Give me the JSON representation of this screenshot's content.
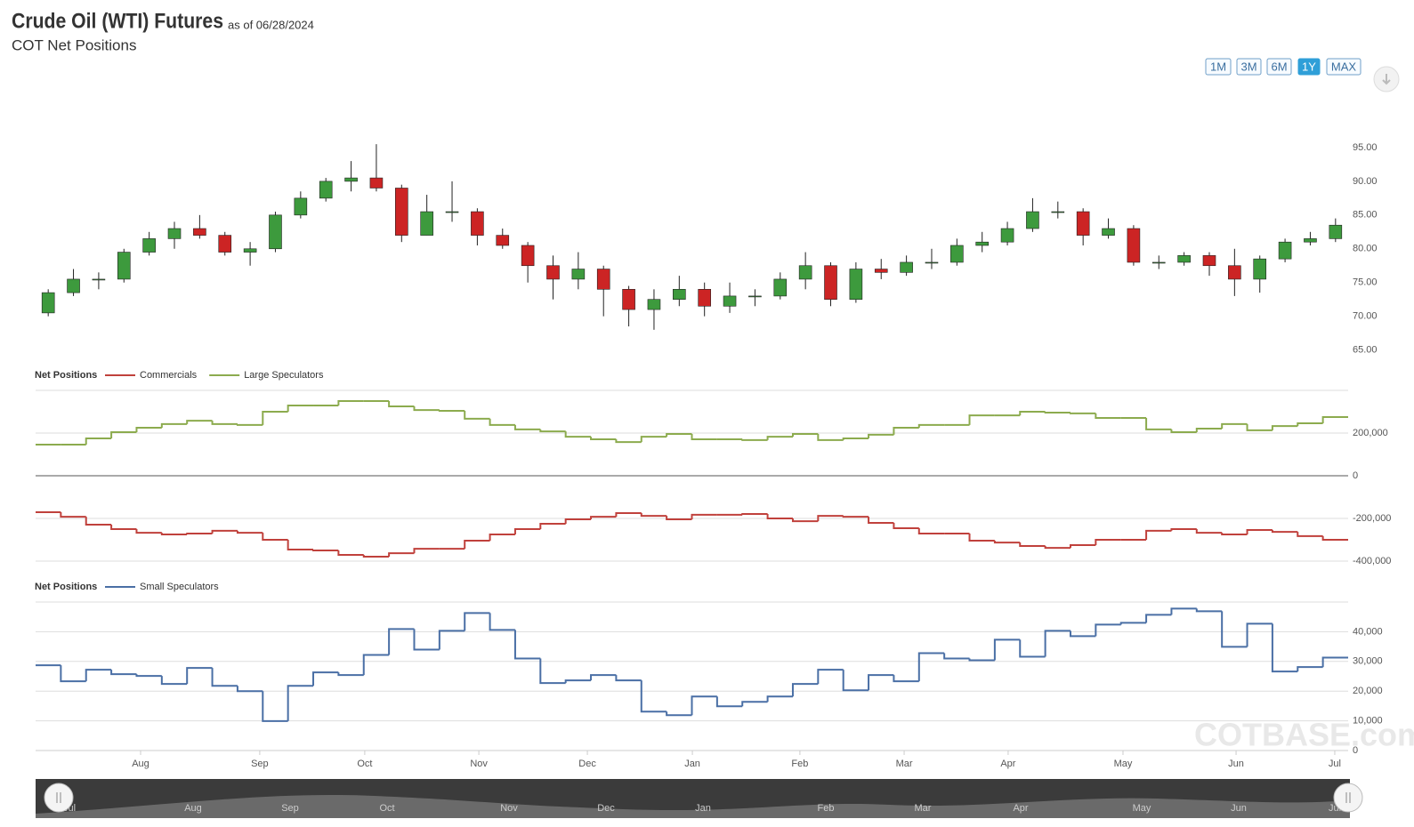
{
  "header": {
    "title": "Crude Oil (WTI) Futures",
    "as_of": "as of 06/28/2024",
    "subtitle": "COT Net Positions"
  },
  "range_buttons": {
    "labels": [
      "1M",
      "3M",
      "6M",
      "1Y",
      "MAX"
    ],
    "selected": 3
  },
  "watermark": "COTBASE.com",
  "navigator": {
    "labels": [
      "Jul",
      "Aug",
      "Sep",
      "Oct",
      "Nov",
      "Dec",
      "Jan",
      "Feb",
      "Mar",
      "Apr",
      "May",
      "Jun",
      "Jul"
    ]
  },
  "chart_data": [
    {
      "type": "candlestick",
      "up_color": "#3d9a3d",
      "down_color": "#cc2424",
      "x": [
        0,
        1,
        2,
        3,
        4,
        5,
        6,
        7,
        8,
        9,
        10,
        11,
        12,
        13,
        14,
        15,
        16,
        17,
        18,
        19,
        20,
        21,
        22,
        23,
        24,
        25,
        26,
        27,
        28,
        29,
        30,
        31,
        32,
        33,
        34,
        35,
        36,
        37,
        38,
        39,
        40,
        41,
        42,
        43,
        44,
        45,
        46,
        47,
        48,
        49,
        50,
        51
      ],
      "open": [
        70.5,
        73.5,
        75.5,
        75.5,
        79.5,
        81.5,
        83,
        82,
        79.5,
        80,
        85,
        87.5,
        90,
        90.5,
        89,
        82,
        85.5,
        85.5,
        82,
        80.5,
        77.5,
        75.5,
        77,
        74,
        71,
        72.5,
        74,
        71.5,
        73,
        73,
        75.5,
        77.5,
        72.5,
        77,
        76.5,
        78,
        78,
        80.5,
        81,
        83,
        85.5,
        85.5,
        82,
        83,
        78,
        78,
        79,
        77.5,
        75.5,
        78.5,
        81,
        81.5
      ],
      "high": [
        74,
        77,
        76.5,
        80,
        82.5,
        84,
        85,
        82.5,
        81,
        85.5,
        88.5,
        90.5,
        93,
        95.5,
        89.5,
        88,
        90,
        86,
        83,
        81,
        79,
        79.5,
        77.5,
        74.5,
        74,
        76,
        75,
        75,
        74,
        76.5,
        79.5,
        78,
        78,
        78.5,
        79,
        80,
        81.5,
        82.5,
        84,
        87.5,
        87,
        86,
        84.5,
        83.5,
        79,
        79.5,
        79.5,
        80,
        79,
        81.5,
        82.5,
        84.5
      ],
      "low": [
        70,
        73,
        74,
        75,
        79,
        80,
        81.5,
        79,
        77.5,
        79.5,
        84.5,
        87,
        88.5,
        88.5,
        81,
        82,
        84,
        80.5,
        80,
        75,
        72.5,
        74,
        70,
        68.5,
        68,
        71.5,
        70,
        70.5,
        71.5,
        72.5,
        74,
        71.5,
        72,
        75.5,
        76,
        77,
        77.5,
        79.5,
        80.5,
        82.5,
        84.5,
        80.5,
        81.5,
        77.5,
        77,
        77.5,
        76,
        73,
        73.5,
        78,
        80.5,
        81
      ],
      "close": [
        73.5,
        75.5,
        75.5,
        79.5,
        81.5,
        83,
        82,
        79.5,
        80,
        85,
        87.5,
        90,
        90.5,
        89,
        82,
        85.5,
        85.5,
        82,
        80.5,
        77.5,
        75.5,
        77,
        74,
        71,
        72.5,
        74,
        71.5,
        73,
        73,
        75.5,
        77.5,
        72.5,
        77,
        76.5,
        78,
        78,
        80.5,
        81,
        83,
        85.5,
        85.5,
        82,
        83,
        78,
        78,
        79,
        77.5,
        75.5,
        78.5,
        81,
        81.5,
        83.5
      ],
      "xlim": [
        0,
        52
      ],
      "ylim": [
        63.5,
        97.1
      ],
      "yticks": [
        {
          "value": 65,
          "label": "65.00"
        },
        {
          "value": 70,
          "label": "70.00"
        },
        {
          "value": 75,
          "label": "75.00"
        },
        {
          "value": 80,
          "label": "80.00"
        },
        {
          "value": 85,
          "label": "85.00"
        },
        {
          "value": 90,
          "label": "90.00"
        },
        {
          "value": 95,
          "label": "95.00"
        }
      ]
    },
    {
      "type": "line",
      "step": true,
      "legend_title": "Net Positions",
      "x": [
        0,
        1,
        2,
        3,
        4,
        5,
        6,
        7,
        8,
        9,
        10,
        11,
        12,
        13,
        14,
        15,
        16,
        17,
        18,
        19,
        20,
        21,
        22,
        23,
        24,
        25,
        26,
        27,
        28,
        29,
        30,
        31,
        32,
        33,
        34,
        35,
        36,
        37,
        38,
        39,
        40,
        41,
        42,
        43,
        44,
        45,
        46,
        47,
        48,
        49,
        50,
        51
      ],
      "series": [
        {
          "name": "Commercials",
          "color": "#c0413c",
          "values": [
            -171000,
            -192000,
            -229000,
            -250000,
            -267000,
            -275000,
            -271000,
            -258000,
            -267000,
            -300000,
            -346000,
            -350000,
            -371000,
            -379000,
            -363000,
            -342000,
            -342000,
            -304000,
            -275000,
            -250000,
            -225000,
            -204000,
            -192000,
            -175000,
            -188000,
            -204000,
            -183000,
            -183000,
            -179000,
            -200000,
            -213000,
            -188000,
            -192000,
            -221000,
            -246000,
            -271000,
            -271000,
            -304000,
            -313000,
            -329000,
            -338000,
            -325000,
            -300000,
            -300000,
            -258000,
            -250000,
            -267000,
            -275000,
            -254000,
            -263000,
            -283000,
            -300000
          ]
        },
        {
          "name": "Large Speculators",
          "color": "#8cab4e",
          "values": [
            146000,
            146000,
            175000,
            204000,
            225000,
            242000,
            258000,
            242000,
            238000,
            300000,
            329000,
            329000,
            350000,
            350000,
            325000,
            308000,
            304000,
            267000,
            238000,
            217000,
            208000,
            183000,
            171000,
            158000,
            183000,
            196000,
            171000,
            171000,
            167000,
            183000,
            196000,
            167000,
            175000,
            192000,
            225000,
            238000,
            238000,
            283000,
            283000,
            300000,
            296000,
            292000,
            271000,
            271000,
            217000,
            204000,
            221000,
            242000,
            213000,
            233000,
            246000,
            275000
          ]
        }
      ],
      "xlim": [
        0,
        52
      ],
      "ylim": [
        -400000,
        400000
      ],
      "yticks": [
        {
          "value": -400000,
          "label": "-400,000"
        },
        {
          "value": -200000,
          "label": "-200,000"
        },
        0,
        {
          "value": 200000,
          "label": "200,000"
        }
      ]
    },
    {
      "type": "line",
      "step": true,
      "legend_title": "Net Positions",
      "x": [
        0,
        1,
        2,
        3,
        4,
        5,
        6,
        7,
        8,
        9,
        10,
        11,
        12,
        13,
        14,
        15,
        16,
        17,
        18,
        19,
        20,
        21,
        22,
        23,
        24,
        25,
        26,
        27,
        28,
        29,
        30,
        31,
        32,
        33,
        34,
        35,
        36,
        37,
        38,
        39,
        40,
        41,
        42,
        43,
        44,
        45,
        46,
        47,
        48,
        49,
        50,
        51
      ],
      "series": [
        {
          "name": "Small Speculators",
          "color": "#4a6fa5",
          "values": [
            28700,
            23300,
            27200,
            25700,
            25100,
            22400,
            27800,
            21800,
            20000,
            9900,
            21800,
            26300,
            25400,
            32200,
            40900,
            34000,
            40300,
            46300,
            40600,
            31000,
            22700,
            23600,
            25400,
            23600,
            13100,
            11900,
            18200,
            14900,
            16400,
            18200,
            22400,
            27200,
            20300,
            25400,
            23300,
            32800,
            31000,
            30400,
            37300,
            31600,
            40300,
            38500,
            42400,
            43000,
            45700,
            47800,
            46900,
            34900,
            42700,
            26600,
            28100,
            31300
          ]
        }
      ],
      "xlim": [
        0,
        52
      ],
      "ylim": [
        0,
        50000
      ],
      "yticks": [
        0,
        {
          "value": 10000,
          "label": "10,000"
        },
        {
          "value": 20000,
          "label": "20,000"
        },
        {
          "value": 30000,
          "label": "30,000"
        },
        {
          "value": 40000,
          "label": "40,000"
        }
      ],
      "xticks": [
        {
          "value": 4.16,
          "label": "Aug"
        },
        {
          "value": 8.88,
          "label": "Sep"
        },
        {
          "value": 13.04,
          "label": "Oct"
        },
        {
          "value": 17.56,
          "label": "Nov"
        },
        {
          "value": 21.86,
          "label": "Dec"
        },
        {
          "value": 26.02,
          "label": "Jan"
        },
        {
          "value": 30.28,
          "label": "Feb"
        },
        {
          "value": 34.41,
          "label": "Mar"
        },
        {
          "value": 38.53,
          "label": "Apr"
        },
        {
          "value": 43.08,
          "label": "May"
        },
        {
          "value": 47.56,
          "label": "Jun"
        },
        {
          "value": 51.47,
          "label": "Jul"
        }
      ]
    }
  ]
}
